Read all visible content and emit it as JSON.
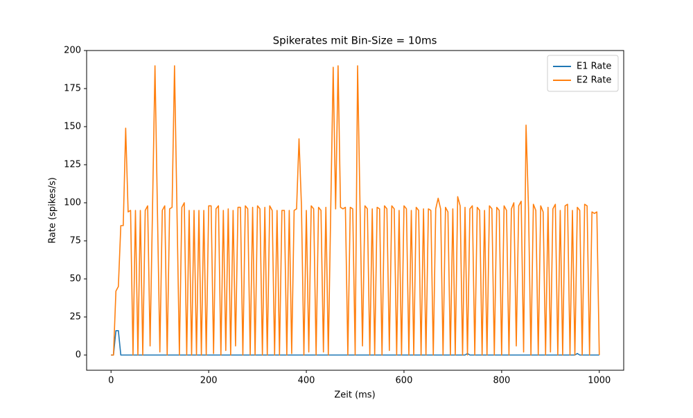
{
  "chart_data": {
    "type": "line",
    "title": "Spikerates mit Bin-Size = 10ms",
    "x_label": "Zeit (ms)",
    "y_label": "Rate (spikes/s)",
    "x": [
      0,
      5,
      10,
      15,
      20,
      25,
      30,
      35,
      40,
      45,
      50,
      55,
      60,
      65,
      70,
      75,
      80,
      85,
      90,
      95,
      100,
      105,
      110,
      115,
      120,
      125,
      130,
      135,
      140,
      145,
      150,
      155,
      160,
      165,
      170,
      175,
      180,
      185,
      190,
      195,
      200,
      205,
      210,
      215,
      220,
      225,
      230,
      235,
      240,
      245,
      250,
      255,
      260,
      265,
      270,
      275,
      280,
      285,
      290,
      295,
      300,
      305,
      310,
      315,
      320,
      325,
      330,
      335,
      340,
      345,
      350,
      355,
      360,
      365,
      370,
      375,
      380,
      385,
      390,
      395,
      400,
      405,
      410,
      415,
      420,
      425,
      430,
      435,
      440,
      445,
      450,
      455,
      460,
      465,
      470,
      475,
      480,
      485,
      490,
      495,
      500,
      505,
      510,
      515,
      520,
      525,
      530,
      535,
      540,
      545,
      550,
      555,
      560,
      565,
      570,
      575,
      580,
      585,
      590,
      595,
      600,
      605,
      610,
      615,
      620,
      625,
      630,
      635,
      640,
      645,
      650,
      655,
      660,
      665,
      670,
      675,
      680,
      685,
      690,
      695,
      700,
      705,
      710,
      715,
      720,
      725,
      730,
      735,
      740,
      745,
      750,
      755,
      760,
      765,
      770,
      775,
      780,
      785,
      790,
      795,
      800,
      805,
      810,
      815,
      820,
      825,
      830,
      835,
      840,
      845,
      850,
      855,
      860,
      865,
      870,
      875,
      880,
      885,
      890,
      895,
      900,
      905,
      910,
      915,
      920,
      925,
      930,
      935,
      940,
      945,
      950,
      955,
      960,
      965,
      970,
      975,
      980,
      985,
      990,
      995,
      1000
    ],
    "series": [
      {
        "name": "E1 Rate",
        "color": "#1f77b4",
        "values": [
          0,
          0,
          16,
          16,
          0,
          0,
          0,
          0,
          0,
          0,
          0,
          0,
          0,
          0,
          0,
          0,
          0,
          0,
          0,
          0,
          0,
          0,
          0,
          0,
          0,
          0,
          0,
          0,
          0,
          0,
          0,
          0,
          0,
          0,
          0,
          0,
          0,
          0,
          0,
          0,
          0,
          0,
          0,
          0,
          0,
          0,
          0,
          0,
          0,
          0,
          0,
          0,
          0,
          0,
          0,
          0,
          0,
          0,
          0,
          0,
          0,
          0,
          0,
          0,
          0,
          0,
          0,
          0,
          0,
          0,
          0,
          0,
          0,
          0,
          0,
          0,
          0,
          0,
          0,
          0,
          0,
          0,
          0,
          0,
          0,
          0,
          0,
          0,
          0,
          0,
          0,
          0,
          0,
          0,
          0,
          0,
          0,
          0,
          0,
          0,
          0,
          0,
          0,
          0,
          0,
          0,
          0,
          0,
          0,
          0,
          0,
          0,
          0,
          0,
          0,
          0,
          0,
          0,
          0,
          0,
          0,
          0,
          0,
          0,
          0,
          0,
          0,
          0,
          0,
          0,
          0,
          0,
          0,
          0,
          0,
          0,
          0,
          0,
          0,
          0,
          0,
          0,
          0,
          0,
          0,
          0,
          1,
          0,
          0,
          0,
          0,
          0,
          0,
          0,
          0,
          0,
          0,
          0,
          0,
          0,
          0,
          0,
          0,
          0,
          0,
          0,
          0,
          0,
          0,
          0,
          0,
          0,
          0,
          0,
          0,
          0,
          0,
          0,
          0,
          0,
          0,
          0,
          0,
          0,
          0,
          0,
          0,
          0,
          0,
          0,
          0,
          1,
          0,
          0,
          0,
          0,
          0,
          0,
          0,
          0,
          0
        ]
      },
      {
        "name": "E2 Rate",
        "color": "#ff7f0e",
        "values": [
          0,
          0,
          42,
          45,
          85,
          85,
          149,
          94,
          95,
          0,
          95,
          0,
          95,
          0,
          95,
          98,
          6,
          97,
          190,
          95,
          2,
          95,
          98,
          0,
          96,
          97,
          190,
          96,
          0,
          97,
          100,
          0,
          95,
          0,
          95,
          0,
          95,
          0,
          95,
          0,
          98,
          98,
          1,
          96,
          98,
          0,
          95,
          3,
          96,
          0,
          95,
          6,
          97,
          97,
          0,
          98,
          96,
          0,
          97,
          0,
          98,
          96,
          0,
          97,
          0,
          98,
          95,
          0,
          95,
          0,
          95,
          95,
          0,
          95,
          1,
          95,
          96,
          142,
          98,
          0,
          95,
          2,
          98,
          96,
          0,
          97,
          95,
          2,
          97,
          0,
          96,
          189,
          96,
          190,
          97,
          96,
          97,
          0,
          97,
          96,
          0,
          190,
          97,
          6,
          98,
          96,
          0,
          96,
          0,
          97,
          96,
          0,
          98,
          96,
          3,
          98,
          96,
          0,
          95,
          0,
          98,
          96,
          0,
          95,
          0,
          97,
          95,
          0,
          96,
          0,
          96,
          95,
          0,
          96,
          103,
          96,
          0,
          97,
          94,
          0,
          96,
          0,
          104,
          98,
          0,
          97,
          0,
          96,
          98,
          0,
          97,
          95,
          0,
          95,
          0,
          98,
          96,
          0,
          97,
          95,
          0,
          98,
          95,
          0,
          96,
          100,
          6,
          98,
          101,
          2,
          151,
          97,
          0,
          99,
          95,
          0,
          98,
          94,
          0,
          97,
          2,
          96,
          99,
          0,
          95,
          0,
          98,
          99,
          0,
          95,
          0,
          97,
          95,
          0,
          99,
          98,
          0,
          94,
          93,
          94,
          0
        ]
      }
    ],
    "xlim": [
      -50,
      1050
    ],
    "ylim": [
      -10,
      200
    ],
    "xticks": [
      0,
      200,
      400,
      600,
      800,
      1000
    ],
    "yticks": [
      0,
      25,
      50,
      75,
      100,
      125,
      150,
      175,
      200
    ],
    "grid": false,
    "legend": "upper right"
  }
}
